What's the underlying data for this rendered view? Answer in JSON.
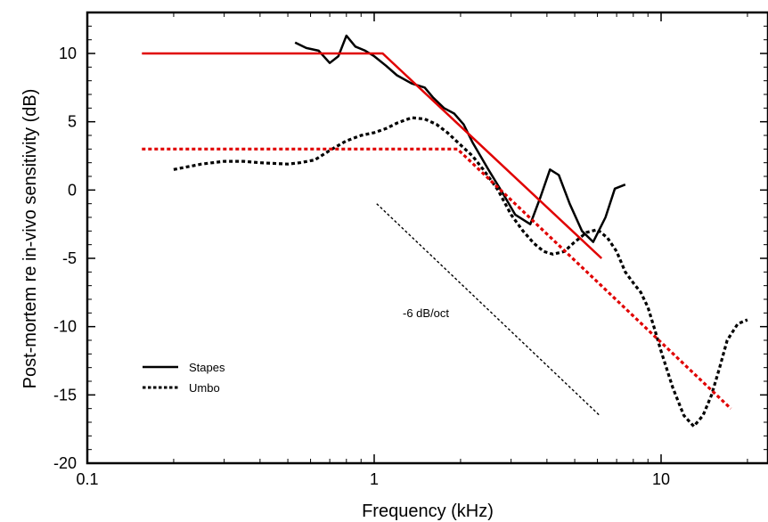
{
  "chart_data": {
    "type": "line",
    "title": "",
    "xlabel": "Frequency (kHz)",
    "ylabel": "Post-mortem re in-vivo sensitivity (dB)",
    "xscale": "log",
    "xlim": [
      0.1,
      20
    ],
    "ylim": [
      -20,
      13
    ],
    "grid": false,
    "legend_position": "bottom-left",
    "x_ticks": [
      0.1,
      1,
      10
    ],
    "x_tick_labels": [
      "0.1",
      "1",
      "10"
    ],
    "y_ticks": [
      10,
      5,
      0,
      -5,
      -10,
      -15,
      -20
    ],
    "y_tick_labels": [
      "10",
      "5",
      "0",
      "-5",
      "-10",
      "-15",
      "-20"
    ],
    "legend": [
      {
        "label": "Stapes",
        "style": "solid"
      },
      {
        "label": "Umbo",
        "style": "dotted"
      }
    ],
    "annotations": [
      {
        "text": "-6 dB/oct"
      }
    ],
    "series": [
      {
        "name": "Stapes",
        "style": "solid",
        "color": "#000000",
        "x": [
          0.53,
          0.58,
          0.64,
          0.7,
          0.75,
          0.8,
          0.86,
          0.93,
          1.0,
          1.1,
          1.2,
          1.35,
          1.5,
          1.6,
          1.75,
          1.9,
          2.05,
          2.2,
          2.5,
          2.8,
          3.1,
          3.5,
          3.8,
          4.1,
          4.4,
          4.8,
          5.3,
          5.8,
          6.4,
          6.9,
          7.5
        ],
        "y": [
          10.8,
          10.4,
          10.2,
          9.3,
          9.8,
          11.3,
          10.5,
          10.2,
          9.8,
          9.1,
          8.4,
          7.8,
          7.5,
          6.8,
          6.0,
          5.6,
          4.8,
          3.5,
          1.5,
          -0.2,
          -1.8,
          -2.5,
          -0.5,
          1.5,
          1.1,
          -1.0,
          -3.0,
          -3.8,
          -2.0,
          0.1,
          0.4
        ]
      },
      {
        "name": "Umbo",
        "style": "dotted",
        "color": "#000000",
        "x": [
          0.2,
          0.25,
          0.3,
          0.35,
          0.4,
          0.5,
          0.55,
          0.62,
          0.7,
          0.8,
          0.9,
          1.0,
          1.1,
          1.2,
          1.35,
          1.5,
          1.65,
          1.8,
          2.0,
          2.2,
          2.4,
          2.7,
          3.0,
          3.3,
          3.6,
          3.9,
          4.2,
          4.6,
          5.0,
          5.5,
          6.0,
          6.5,
          7.0,
          7.5,
          8.0,
          8.5,
          9.0,
          9.5,
          10.0,
          11.0,
          12.0,
          13.0,
          14.0,
          15.0,
          16.0,
          17.0,
          18.5,
          20.0
        ],
        "y": [
          1.5,
          1.9,
          2.1,
          2.1,
          2.0,
          1.9,
          2.0,
          2.2,
          2.9,
          3.6,
          4.0,
          4.2,
          4.5,
          4.9,
          5.3,
          5.2,
          4.8,
          4.2,
          3.3,
          2.5,
          1.5,
          0.0,
          -1.8,
          -3.0,
          -3.9,
          -4.5,
          -4.7,
          -4.5,
          -3.8,
          -3.1,
          -2.9,
          -3.5,
          -4.5,
          -6.0,
          -6.8,
          -7.5,
          -8.6,
          -10.2,
          -11.8,
          -14.5,
          -16.5,
          -17.3,
          -16.5,
          -15.0,
          -13.0,
          -11.0,
          -9.8,
          -9.5
        ]
      },
      {
        "name": "",
        "style": "solid",
        "color": "#e00000",
        "x": [
          0.155,
          1.07,
          6.2
        ],
        "y": [
          10,
          10,
          -5
        ]
      },
      {
        "name": "",
        "style": "dotted",
        "color": "#e00000",
        "x": [
          0.155,
          1.95,
          17.5
        ],
        "y": [
          3,
          3,
          -16
        ]
      },
      {
        "name": "",
        "style": "dotted-thin",
        "color": "#000000",
        "x": [
          1.02,
          6.1
        ],
        "y": [
          -1,
          -16.5
        ]
      }
    ]
  }
}
